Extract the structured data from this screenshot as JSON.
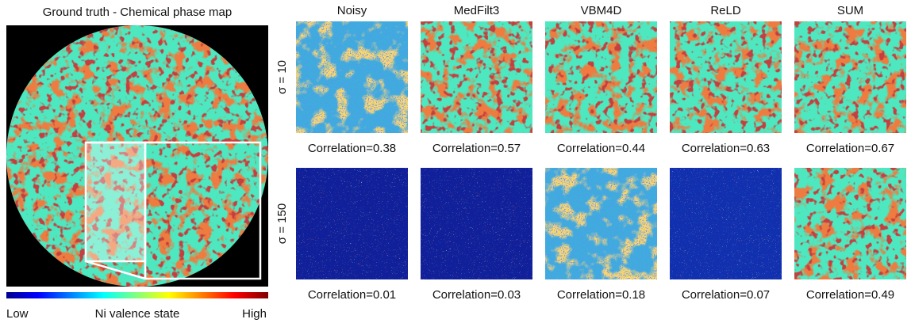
{
  "left": {
    "title": "Ground truth - Chemical phase map",
    "colorbar": {
      "low": "Low",
      "label": "Ni valence state",
      "high": "High"
    }
  },
  "columns": [
    "Noisy",
    "MedFilt3",
    "VBM4D",
    "ReLD",
    "SUM"
  ],
  "rows": [
    {
      "label": "σ = 10",
      "correlations": [
        "Correlation=0.38",
        "Correlation=0.57",
        "Correlation=0.44",
        "Correlation=0.63",
        "Correlation=0.67"
      ]
    },
    {
      "label": "σ = 150",
      "correlations": [
        "Correlation=0.01",
        "Correlation=0.03",
        "Correlation=0.18",
        "Correlation=0.07",
        "Correlation=0.49"
      ]
    }
  ]
}
